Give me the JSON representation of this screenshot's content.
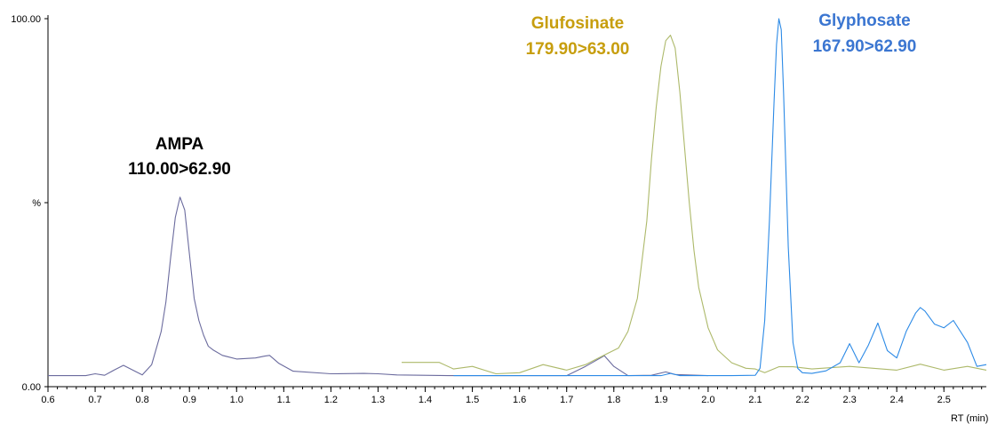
{
  "chart_data": {
    "type": "line",
    "title": "",
    "xlabel": "RT (min)",
    "ylabel": "%",
    "xlim": [
      0.6,
      2.59
    ],
    "ylim": [
      0,
      100
    ],
    "y_tick_labels": [
      {
        "value": 100,
        "label": "100.00"
      },
      {
        "value": 50,
        "label": "%"
      },
      {
        "value": 0,
        "label": "0.00"
      }
    ],
    "x_ticks": [
      0.6,
      0.7,
      0.8,
      0.9,
      1.0,
      1.1,
      1.2,
      1.3,
      1.4,
      1.5,
      1.6,
      1.7,
      1.8,
      1.9,
      2.0,
      2.1,
      2.2,
      2.3,
      2.4,
      2.5
    ],
    "x_tick_labels": [
      "0.6",
      "0.7",
      "0.8",
      "0.9",
      "1.0",
      "1.1",
      "1.2",
      "1.3",
      "1.4",
      "1.5",
      "1.6",
      "1.7",
      "1.8",
      "1.9",
      "2.0",
      "2.1",
      "2.2",
      "2.3",
      "2.4",
      "2.5"
    ],
    "series": [
      {
        "color": "#6b6b9e",
        "x": [
          0.6,
          0.68,
          0.7,
          0.72,
          0.74,
          0.76,
          0.78,
          0.8,
          0.82,
          0.84,
          0.85,
          0.86,
          0.87,
          0.88,
          0.89,
          0.9,
          0.91,
          0.92,
          0.93,
          0.94,
          0.95,
          0.97,
          1.0,
          1.04,
          1.06,
          1.07,
          1.09,
          1.12,
          1.2,
          1.27,
          1.3,
          1.34,
          1.45,
          1.7,
          1.74,
          1.78,
          1.8,
          1.83,
          1.88,
          1.91,
          1.93,
          2.0
        ],
        "y": [
          3,
          3,
          3.5,
          3.1,
          4.5,
          5.8,
          4.5,
          3.2,
          6,
          15,
          23,
          35,
          46,
          51.5,
          48,
          36,
          24,
          18,
          14,
          11,
          10,
          8.5,
          7.5,
          7.8,
          8.3,
          8.5,
          6.3,
          4.2,
          3.5,
          3.6,
          3.5,
          3.2,
          3.0,
          3.0,
          5.5,
          8.4,
          5.5,
          3.0,
          3.1,
          4.0,
          3.3,
          3.0
        ]
      },
      {
        "color": "#adb96a",
        "x": [
          1.35,
          1.4,
          1.43,
          1.46,
          1.5,
          1.55,
          1.6,
          1.65,
          1.7,
          1.74,
          1.78,
          1.81,
          1.83,
          1.85,
          1.87,
          1.88,
          1.89,
          1.9,
          1.91,
          1.92,
          1.93,
          1.94,
          1.95,
          1.96,
          1.97,
          1.98,
          2.0,
          2.02,
          2.05,
          2.08,
          2.1,
          2.12,
          2.15,
          2.18,
          2.22,
          2.3,
          2.4,
          2.45,
          2.5,
          2.55,
          2.59
        ],
        "y": [
          6.6,
          6.6,
          6.6,
          4.8,
          5.5,
          3.5,
          3.8,
          6.0,
          4.5,
          6.0,
          8.6,
          10.5,
          15,
          24,
          45,
          62,
          76,
          87,
          94,
          95.5,
          92,
          80,
          65,
          50,
          37,
          27,
          16,
          10,
          6.5,
          5.0,
          4.8,
          3.8,
          5.4,
          5.4,
          4.8,
          5.5,
          4.5,
          6.1,
          4.5,
          5.5,
          4.5
        ]
      },
      {
        "color": "#2c8ae6",
        "x": [
          1.46,
          1.9,
          1.92,
          1.94,
          2.05,
          2.1,
          2.11,
          2.12,
          2.13,
          2.14,
          2.145,
          2.15,
          2.155,
          2.16,
          2.17,
          2.18,
          2.19,
          2.2,
          2.22,
          2.25,
          2.28,
          2.3,
          2.32,
          2.34,
          2.36,
          2.38,
          2.4,
          2.42,
          2.44,
          2.45,
          2.46,
          2.48,
          2.5,
          2.52,
          2.55,
          2.57,
          2.59
        ],
        "y": [
          3,
          3,
          3.6,
          3,
          3,
          3.1,
          5,
          18,
          45,
          78,
          93,
          100,
          97,
          80,
          38,
          12,
          5,
          3.8,
          3.6,
          4.3,
          6.5,
          11.7,
          6.5,
          11.3,
          17.3,
          9.8,
          7.8,
          15,
          20,
          21.5,
          20.5,
          17,
          16,
          18,
          12,
          5.5,
          6.0
        ]
      }
    ],
    "annotations": [
      {
        "name": "AMPA",
        "mrm": "110.00>62.90",
        "color": "#000000"
      },
      {
        "name": "Glufosinate",
        "mrm": "179.90>63.00",
        "color": "#c79e0e"
      },
      {
        "name": "Glyphosate",
        "mrm": "167.90>62.90",
        "color": "#3b76d1"
      }
    ]
  }
}
